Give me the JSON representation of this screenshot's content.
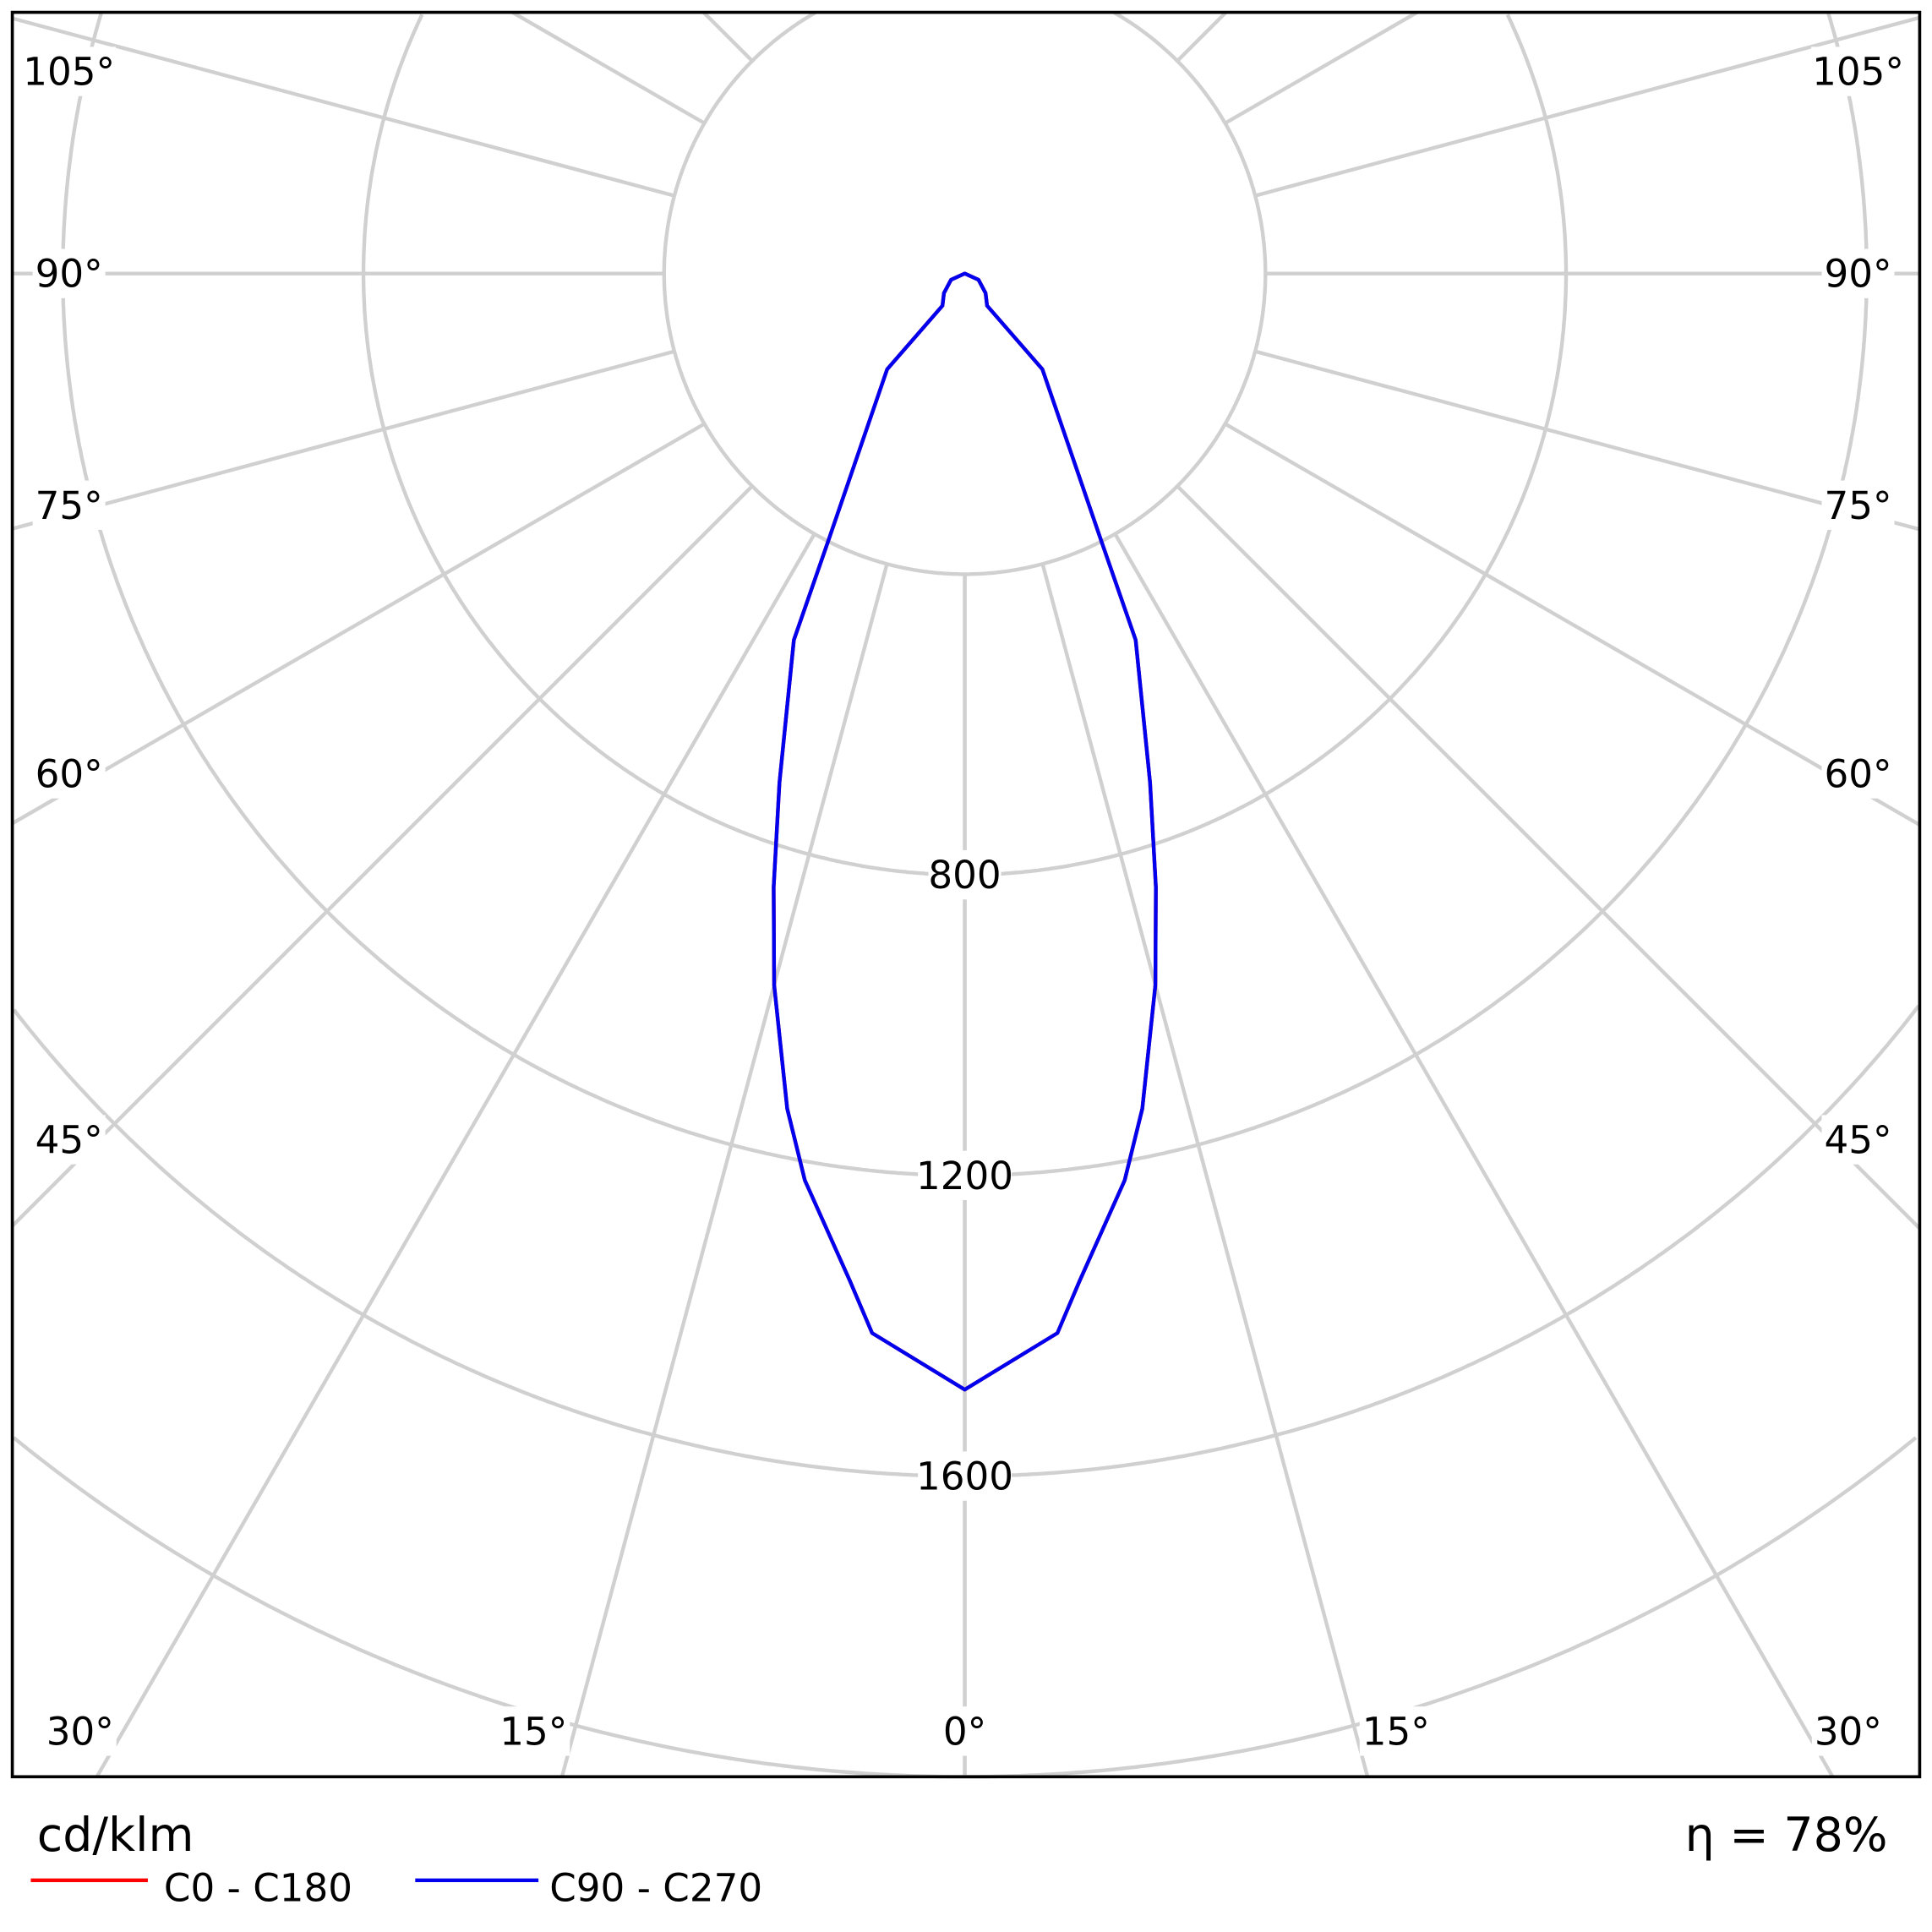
{
  "chart_data": {
    "type": "polar",
    "unit_label": "cd/klm",
    "efficiency_label": "η = 78%",
    "radial_ticks": [
      400,
      800,
      1200,
      1600,
      2000
    ],
    "radial_tick_labels": [
      "800",
      "1200",
      "1600"
    ],
    "angle_tick_labels": {
      "side": [
        "105°",
        "90°",
        "75°",
        "60°",
        "45°"
      ],
      "bottom": [
        "30°",
        "15°",
        "0°",
        "15°",
        "30°"
      ]
    },
    "angle_step_deg": 15,
    "grid": true,
    "series": [
      {
        "name": "C0 - C180",
        "color": "#ff0000",
        "points": [
          [
            0,
            1485
          ],
          [
            5,
            1415
          ],
          [
            6.5,
            1349
          ],
          [
            10,
            1225
          ],
          [
            12,
            1136
          ],
          [
            15,
            980
          ],
          [
            17.3,
            855
          ],
          [
            20,
            721
          ],
          [
            25,
            538
          ],
          [
            27,
            401
          ],
          [
            39,
            164
          ],
          [
            34.7,
            52
          ],
          [
            46.7,
            38
          ],
          [
            65.6,
            20
          ],
          [
            90,
            0
          ]
        ]
      },
      {
        "name": "C90 - C270",
        "color": "#0000ee",
        "points": [
          [
            0,
            1485
          ],
          [
            5,
            1415
          ],
          [
            6.5,
            1349
          ],
          [
            10,
            1225
          ],
          [
            12,
            1136
          ],
          [
            15,
            980
          ],
          [
            17.3,
            855
          ],
          [
            20,
            721
          ],
          [
            25,
            538
          ],
          [
            27,
            401
          ],
          [
            39,
            164
          ],
          [
            34.7,
            52
          ],
          [
            46.7,
            38
          ],
          [
            65.6,
            20
          ],
          [
            90,
            0
          ]
        ]
      }
    ],
    "legend_placement": "bottom-left"
  }
}
